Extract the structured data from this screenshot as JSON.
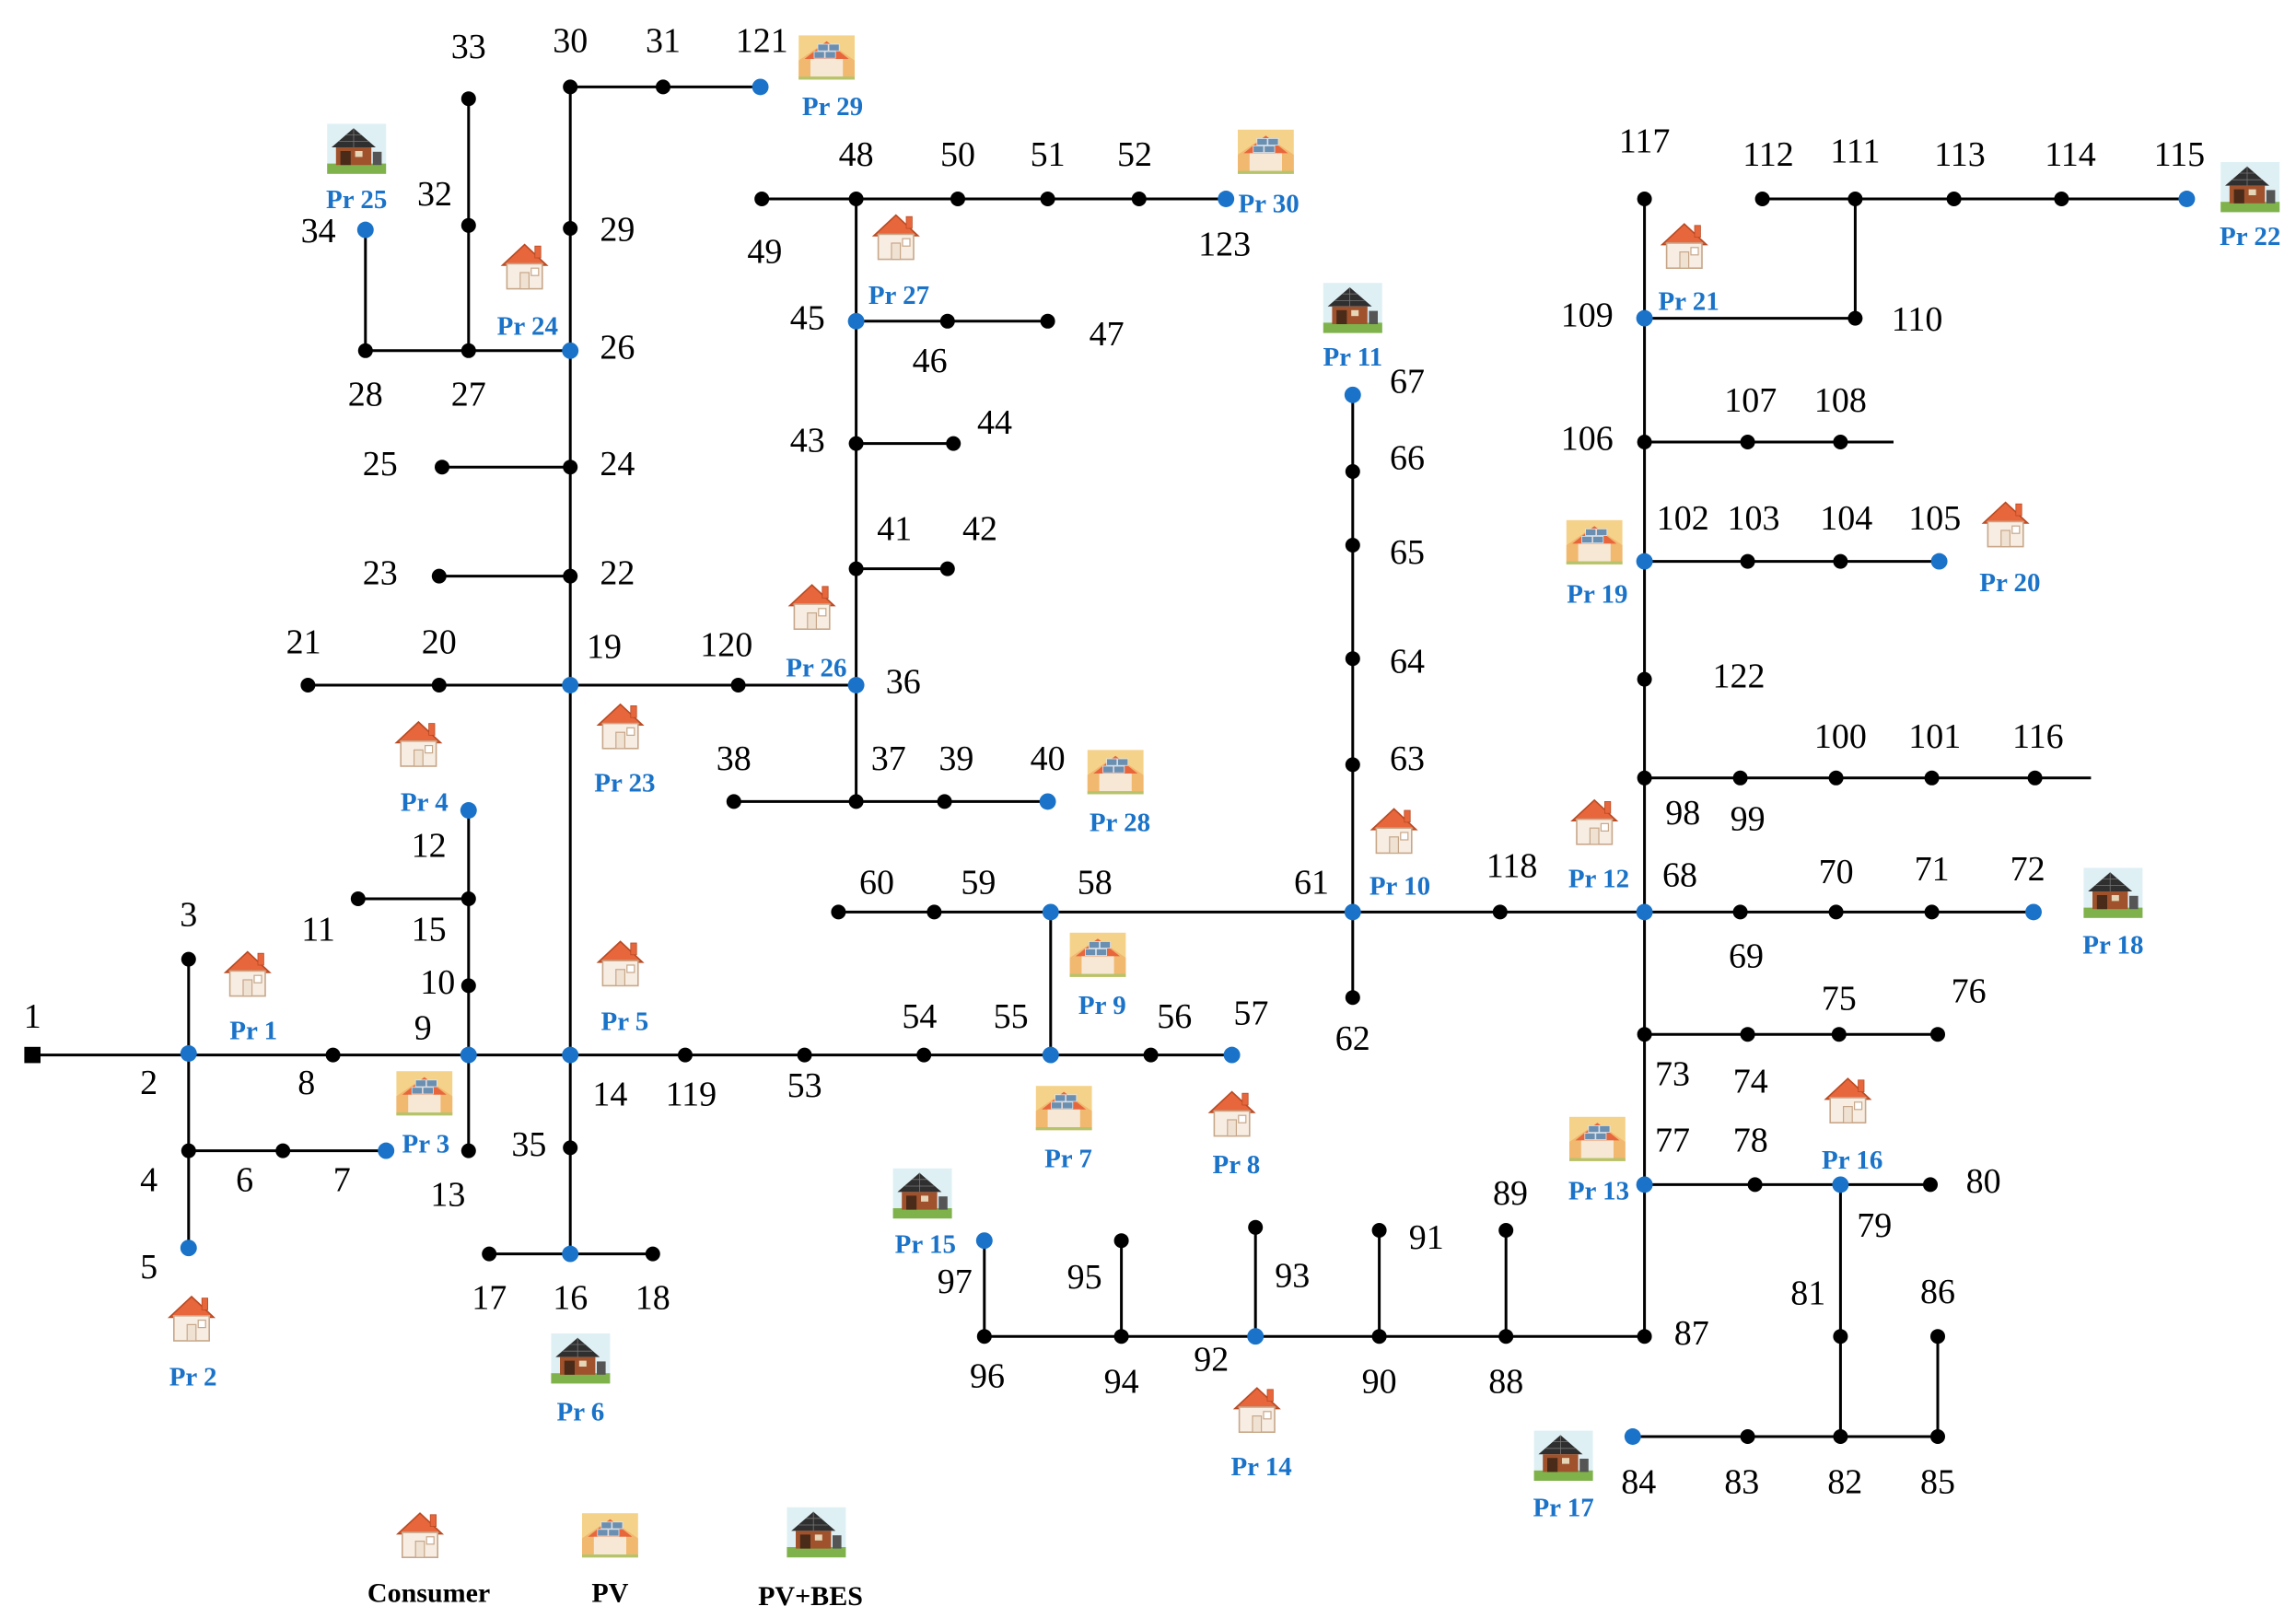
{
  "buses": [
    "1",
    "2",
    "3",
    "4",
    "5",
    "6",
    "7",
    "8",
    "9",
    "10",
    "11",
    "12",
    "13",
    "14",
    "15",
    "16",
    "17",
    "18",
    "19",
    "20",
    "21",
    "22",
    "23",
    "24",
    "25",
    "26",
    "27",
    "28",
    "29",
    "30",
    "31",
    "32",
    "33",
    "34",
    "35",
    "36",
    "37",
    "38",
    "39",
    "40",
    "41",
    "42",
    "43",
    "44",
    "45",
    "46",
    "47",
    "48",
    "49",
    "50",
    "51",
    "52",
    "53",
    "54",
    "55",
    "56",
    "57",
    "58",
    "59",
    "60",
    "61",
    "62",
    "63",
    "64",
    "65",
    "66",
    "67",
    "68",
    "69",
    "70",
    "71",
    "72",
    "73",
    "74",
    "75",
    "76",
    "77",
    "78",
    "79",
    "80",
    "81",
    "82",
    "83",
    "84",
    "85",
    "86",
    "87",
    "88",
    "89",
    "90",
    "91",
    "92",
    "93",
    "94",
    "95",
    "96",
    "97",
    "98",
    "99",
    "100",
    "101",
    "102",
    "103",
    "104",
    "105",
    "106",
    "107",
    "108",
    "109",
    "110",
    "111",
    "112",
    "113",
    "114",
    "115",
    "116",
    "117",
    "118",
    "119",
    "120",
    "121",
    "122",
    "123"
  ],
  "prosumers": [
    {
      "label": "Pr 1",
      "type": "consumer"
    },
    {
      "label": "Pr 2",
      "type": "consumer"
    },
    {
      "label": "Pr 3",
      "type": "pv"
    },
    {
      "label": "Pr 4",
      "type": "consumer"
    },
    {
      "label": "Pr 5",
      "type": "consumer"
    },
    {
      "label": "Pr 6",
      "type": "pv-bes"
    },
    {
      "label": "Pr 7",
      "type": "pv"
    },
    {
      "label": "Pr 8",
      "type": "consumer"
    },
    {
      "label": "Pr 9",
      "type": "pv"
    },
    {
      "label": "Pr 10",
      "type": "consumer"
    },
    {
      "label": "Pr 11",
      "type": "pv-bes"
    },
    {
      "label": "Pr 12",
      "type": "consumer"
    },
    {
      "label": "Pr 13",
      "type": "pv"
    },
    {
      "label": "Pr 14",
      "type": "consumer"
    },
    {
      "label": "Pr 15",
      "type": "pv-bes"
    },
    {
      "label": "Pr 16",
      "type": "consumer"
    },
    {
      "label": "Pr 17",
      "type": "pv-bes"
    },
    {
      "label": "Pr 18",
      "type": "pv-bes"
    },
    {
      "label": "Pr 19",
      "type": "pv"
    },
    {
      "label": "Pr 20",
      "type": "consumer"
    },
    {
      "label": "Pr 21",
      "type": "consumer"
    },
    {
      "label": "Pr 22",
      "type": "pv-bes"
    },
    {
      "label": "Pr 23",
      "type": "consumer"
    },
    {
      "label": "Pr 24",
      "type": "consumer"
    },
    {
      "label": "Pr 25",
      "type": "pv-bes"
    },
    {
      "label": "Pr 26",
      "type": "consumer"
    },
    {
      "label": "Pr 27",
      "type": "consumer"
    },
    {
      "label": "Pr 28",
      "type": "pv"
    },
    {
      "label": "Pr 29",
      "type": "pv"
    },
    {
      "label": "Pr 30",
      "type": "pv"
    }
  ],
  "legend": [
    {
      "label": "Consumer",
      "icon": "consumer-house-icon"
    },
    {
      "label": "PV",
      "icon": "pv-house-icon"
    },
    {
      "label": "PV+BES",
      "icon": "pv-bes-house-icon"
    }
  ],
  "colors": {
    "line": "#000000",
    "prosumer_node": "#1a73c8",
    "prosumer_label": "#1a73c8",
    "house_roof": "#e8663c",
    "pv_panel": "#d9a441",
    "bes_roof": "#3a2a20"
  }
}
